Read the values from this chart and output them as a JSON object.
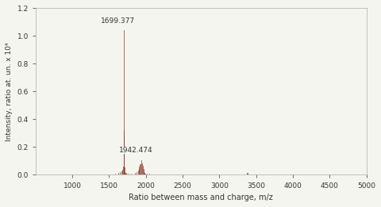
{
  "title": "",
  "xlabel": "Ratio between mass and charge, m/z",
  "ylabel": "Intensity, ratio at. un. x 10⁴",
  "xlim": [
    500,
    5000
  ],
  "ylim": [
    0,
    1.2
  ],
  "xticks": [
    1000,
    1500,
    2000,
    2500,
    3000,
    3500,
    4000,
    4500,
    5000
  ],
  "yticks": [
    0.0,
    0.2,
    0.4,
    0.6,
    0.8,
    1.0,
    1.2
  ],
  "bar_color": "#8B3A2A",
  "line_color": "#8B3A2A",
  "background_color": "#f5f5f0",
  "main_peak_mz": 1699.377,
  "main_peak_intensity": 1.04,
  "second_peak_mz": 1942.474,
  "second_peak_intensity": 0.105,
  "annotation1": "1699.377",
  "annotation2": "1942.474",
  "peaks": [
    {
      "mz": 1550,
      "intensity": 0.005
    },
    {
      "mz": 1580,
      "intensity": 0.008
    },
    {
      "mz": 1620,
      "intensity": 0.012
    },
    {
      "mz": 1650,
      "intensity": 0.018
    },
    {
      "mz": 1670,
      "intensity": 0.025
    },
    {
      "mz": 1680,
      "intensity": 0.035
    },
    {
      "mz": 1690,
      "intensity": 0.06
    },
    {
      "mz": 1695,
      "intensity": 0.32
    },
    {
      "mz": 1699.377,
      "intensity": 1.04
    },
    {
      "mz": 1703,
      "intensity": 0.28
    },
    {
      "mz": 1707,
      "intensity": 0.055
    },
    {
      "mz": 1712,
      "intensity": 0.022
    },
    {
      "mz": 1720,
      "intensity": 0.015
    },
    {
      "mz": 1730,
      "intensity": 0.012
    },
    {
      "mz": 1750,
      "intensity": 0.01
    },
    {
      "mz": 1800,
      "intensity": 0.008
    },
    {
      "mz": 1850,
      "intensity": 0.012
    },
    {
      "mz": 1870,
      "intensity": 0.018
    },
    {
      "mz": 1890,
      "intensity": 0.03
    },
    {
      "mz": 1900,
      "intensity": 0.045
    },
    {
      "mz": 1910,
      "intensity": 0.06
    },
    {
      "mz": 1920,
      "intensity": 0.075
    },
    {
      "mz": 1930,
      "intensity": 0.078
    },
    {
      "mz": 1942.474,
      "intensity": 0.105
    },
    {
      "mz": 1950,
      "intensity": 0.082
    },
    {
      "mz": 1958,
      "intensity": 0.068
    },
    {
      "mz": 1965,
      "intensity": 0.045
    },
    {
      "mz": 1975,
      "intensity": 0.025
    },
    {
      "mz": 1985,
      "intensity": 0.015
    },
    {
      "mz": 1995,
      "intensity": 0.01
    },
    {
      "mz": 2010,
      "intensity": 0.008
    },
    {
      "mz": 2050,
      "intensity": 0.006
    },
    {
      "mz": 2100,
      "intensity": 0.005
    },
    {
      "mz": 3370,
      "intensity": 0.012
    },
    {
      "mz": 3380,
      "intensity": 0.015
    },
    {
      "mz": 3390,
      "intensity": 0.01
    },
    {
      "mz": 4700,
      "intensity": 0.005
    }
  ]
}
